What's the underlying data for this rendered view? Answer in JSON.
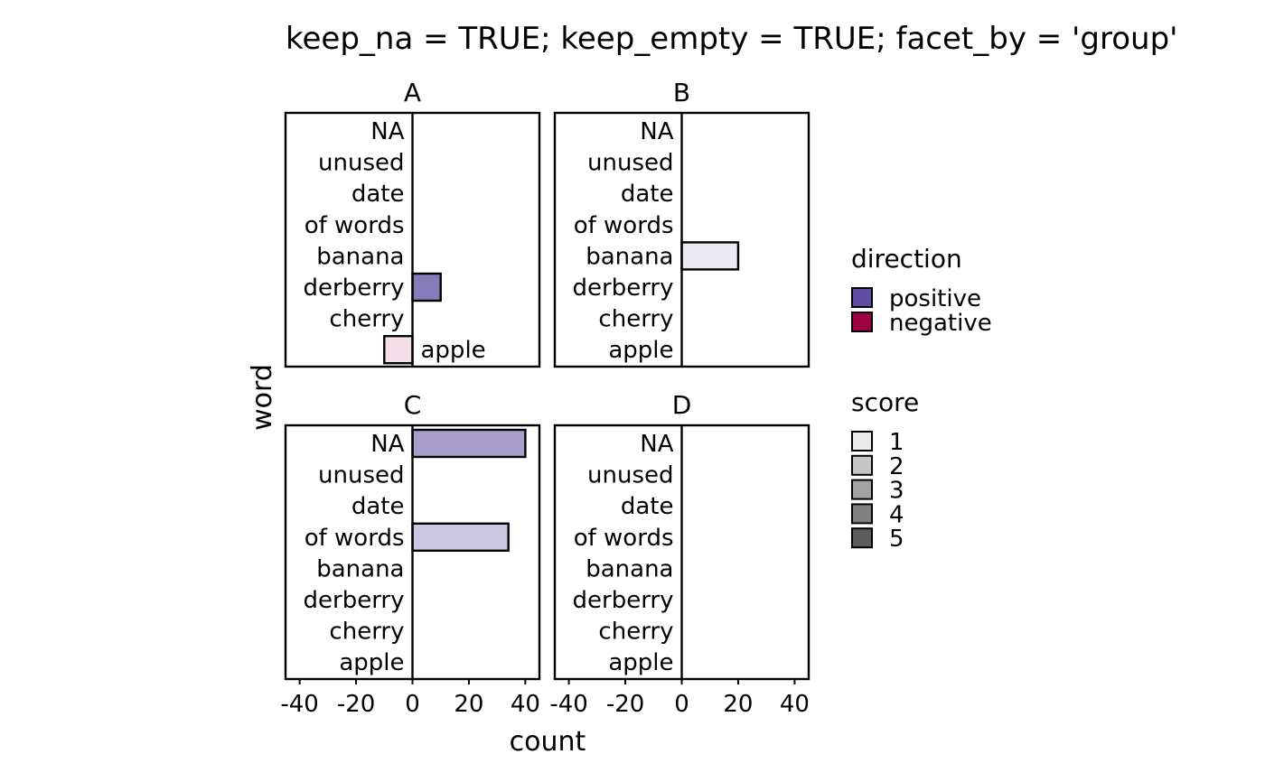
{
  "chart_data": {
    "type": "bar",
    "orientation": "horizontal",
    "title": "keep_na = TRUE; keep_empty = TRUE; facet_by = 'group'",
    "xlabel": "count",
    "ylabel": "word",
    "xlim": [
      -45,
      45
    ],
    "x_ticks": [
      -40,
      -20,
      0,
      20,
      40
    ],
    "x_tick_labels": [
      "-40",
      "-20",
      "0",
      "20",
      "40"
    ],
    "categories": [
      "NA",
      "unused",
      "date",
      "of words",
      "banana",
      "derberry",
      "cherry",
      "apple"
    ],
    "grid": false,
    "facets": [
      {
        "name": "A",
        "bars": [
          {
            "word": "derberry",
            "count": 10,
            "direction": "positive",
            "score": 4
          },
          {
            "word": "apple",
            "count": -10,
            "direction": "negative",
            "score": 1
          }
        ],
        "annotations": [
          {
            "word": "apple",
            "text": "apple"
          }
        ]
      },
      {
        "name": "B",
        "bars": [
          {
            "word": "banana",
            "count": 20,
            "direction": "positive",
            "score": 1
          }
        ],
        "annotations": []
      },
      {
        "name": "C",
        "bars": [
          {
            "word": "NA",
            "count": 40,
            "direction": "positive",
            "score": 3
          },
          {
            "word": "of words",
            "count": 34,
            "direction": "positive",
            "score": 2
          }
        ],
        "annotations": []
      },
      {
        "name": "D",
        "bars": [],
        "annotations": []
      }
    ],
    "legends": {
      "placement": "right",
      "direction": {
        "title": "direction",
        "items": [
          {
            "label": "positive",
            "color": "#5e4fa2"
          },
          {
            "label": "negative",
            "color": "#9e0142"
          }
        ]
      },
      "score": {
        "title": "score",
        "items": [
          {
            "label": "1",
            "color": "#ebebeb"
          },
          {
            "label": "2",
            "color": "#c6c6c6"
          },
          {
            "label": "3",
            "color": "#a3a3a3"
          },
          {
            "label": "4",
            "color": "#808080"
          },
          {
            "label": "5",
            "color": "#5c5c5c"
          }
        ]
      }
    }
  }
}
